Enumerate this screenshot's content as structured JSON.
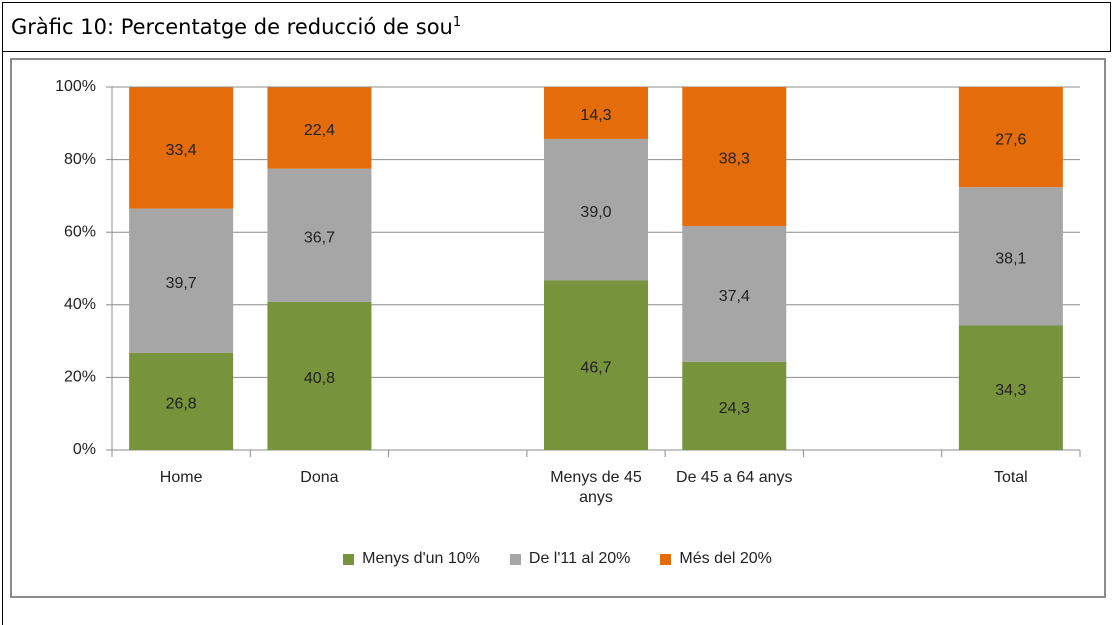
{
  "chart_data": {
    "type": "stacked_bar",
    "title": "Gràfic 10: Percentatge de reducció de sou",
    "title_superscript": "1",
    "categories": [
      "Home",
      "Dona",
      null,
      "Menys de 45 anys",
      "De 45 a 64 anys",
      null,
      "Total"
    ],
    "series": [
      {
        "name": "Menys d'un 10%",
        "color": "#77933c",
        "values": [
          26.8,
          40.8,
          null,
          46.7,
          24.3,
          null,
          34.3
        ],
        "value_labels": [
          "26,8",
          "40,8",
          null,
          "46,7",
          "24,3",
          null,
          "34,3"
        ]
      },
      {
        "name": "De l'11 al 20%",
        "color": "#a6a6a6",
        "values": [
          39.7,
          36.7,
          null,
          39.0,
          37.4,
          null,
          38.1
        ],
        "value_labels": [
          "39,7",
          "36,7",
          null,
          "39,0",
          "37,4",
          null,
          "38,1"
        ]
      },
      {
        "name": "Més del 20%",
        "color": "#e46c0a",
        "values": [
          33.4,
          22.4,
          null,
          14.3,
          38.3,
          null,
          27.6
        ],
        "value_labels": [
          "33,4",
          "22,4",
          null,
          "14,3",
          "38,3",
          null,
          "27,6"
        ]
      }
    ],
    "ylim": [
      0,
      100
    ],
    "yticks": [
      {
        "value": 0,
        "label": "0%"
      },
      {
        "value": 20,
        "label": "20%"
      },
      {
        "value": 40,
        "label": "40%"
      },
      {
        "value": 60,
        "label": "60%"
      },
      {
        "value": 80,
        "label": "80%"
      },
      {
        "value": 100,
        "label": "100%"
      }
    ],
    "grid": true,
    "legend": "bottom"
  }
}
